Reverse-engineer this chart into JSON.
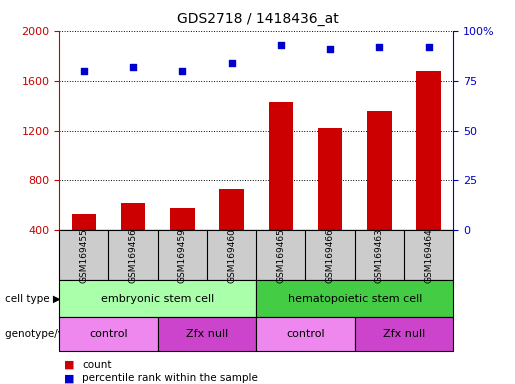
{
  "title": "GDS2718 / 1418436_at",
  "samples": [
    "GSM169455",
    "GSM169456",
    "GSM169459",
    "GSM169460",
    "GSM169465",
    "GSM169466",
    "GSM169463",
    "GSM169464"
  ],
  "counts": [
    530,
    620,
    580,
    730,
    1430,
    1220,
    1360,
    1680
  ],
  "percentile_ranks": [
    80,
    82,
    80,
    84,
    93,
    91,
    92,
    92
  ],
  "ylim_left": [
    400,
    2000
  ],
  "ylim_right": [
    0,
    100
  ],
  "yticks_left": [
    400,
    800,
    1200,
    1600,
    2000
  ],
  "yticks_right": [
    0,
    25,
    50,
    75,
    100
  ],
  "bar_color": "#cc0000",
  "dot_color": "#0000cc",
  "cell_types": [
    {
      "label": "embryonic stem cell",
      "start": 0,
      "end": 4,
      "color": "#aaffaa"
    },
    {
      "label": "hematopoietic stem cell",
      "start": 4,
      "end": 8,
      "color": "#44cc44"
    }
  ],
  "genotypes": [
    {
      "label": "control",
      "start": 0,
      "end": 2,
      "color": "#ee88ee"
    },
    {
      "label": "Zfx null",
      "start": 2,
      "end": 4,
      "color": "#cc44cc"
    },
    {
      "label": "control",
      "start": 4,
      "end": 6,
      "color": "#ee88ee"
    },
    {
      "label": "Zfx null",
      "start": 6,
      "end": 8,
      "color": "#cc44cc"
    }
  ],
  "legend_count_color": "#cc0000",
  "legend_pct_color": "#0000cc",
  "tick_label_color_left": "#cc0000",
  "tick_label_color_right": "#0000cc",
  "bar_width": 0.5,
  "tick_bg_color": "#cccccc",
  "figure_width": 5.15,
  "figure_height": 3.84,
  "dpi": 100
}
